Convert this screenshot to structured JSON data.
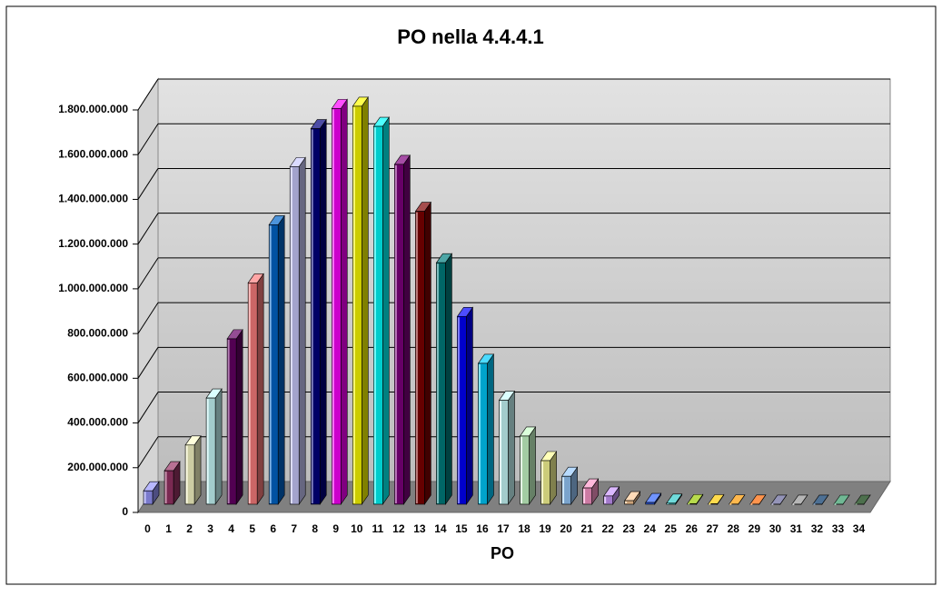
{
  "chart_data": {
    "type": "bar",
    "title": "PO nella 4.4.4.1",
    "x_label": "PO",
    "categories": [
      "0",
      "1",
      "2",
      "3",
      "4",
      "5",
      "6",
      "7",
      "8",
      "9",
      "10",
      "11",
      "12",
      "13",
      "14",
      "15",
      "16",
      "17",
      "18",
      "19",
      "20",
      "21",
      "22",
      "23",
      "24",
      "25",
      "26",
      "27",
      "28",
      "29",
      "30",
      "31",
      "32",
      "33",
      "34"
    ],
    "values": [
      60000000,
      150000000,
      265000000,
      475000000,
      740000000,
      990000000,
      1250000000,
      1510000000,
      1680000000,
      1770000000,
      1780000000,
      1690000000,
      1520000000,
      1310000000,
      1080000000,
      840000000,
      630000000,
      465000000,
      305000000,
      195000000,
      125000000,
      73000000,
      37000000,
      16000000,
      8000000,
      5000000,
      3000000,
      2000000,
      1000000,
      600000,
      300000,
      150000,
      70000,
      30000,
      10000
    ],
    "colors": [
      "#9999ff",
      "#993366",
      "#ffffcc",
      "#ccffff",
      "#660066",
      "#ff8080",
      "#0066cc",
      "#ccccff",
      "#000080",
      "#ff00ff",
      "#ffff00",
      "#00ffff",
      "#800080",
      "#800000",
      "#008080",
      "#0000ff",
      "#00ccff",
      "#ccffff",
      "#ccffcc",
      "#ffff99",
      "#99ccff",
      "#ff99cc",
      "#cc99ff",
      "#ffcc99",
      "#3366ff",
      "#33cccc",
      "#99cc00",
      "#ffcc00",
      "#ff9900",
      "#ff6600",
      "#666699",
      "#969696",
      "#003366",
      "#339966",
      "#003300"
    ],
    "ylim": [
      0,
      1800000000
    ],
    "yticks": [
      0,
      {
        "value": 200000000,
        "label": "200.000.000"
      },
      {
        "value": 400000000,
        "label": "400.000.000"
      },
      {
        "value": 600000000,
        "label": "600.000.000"
      },
      {
        "value": 800000000,
        "label": "800.000.000"
      },
      {
        "value": 1000000000,
        "label": "1.000.000.000"
      },
      {
        "value": 1200000000,
        "label": "1.200.000.000"
      },
      {
        "value": 1400000000,
        "label": "1.400.000.000"
      },
      {
        "value": 1600000000,
        "label": "1.600.000.000"
      },
      {
        "value": 1800000000,
        "label": "1.800.000.000"
      }
    ],
    "grid": true
  }
}
